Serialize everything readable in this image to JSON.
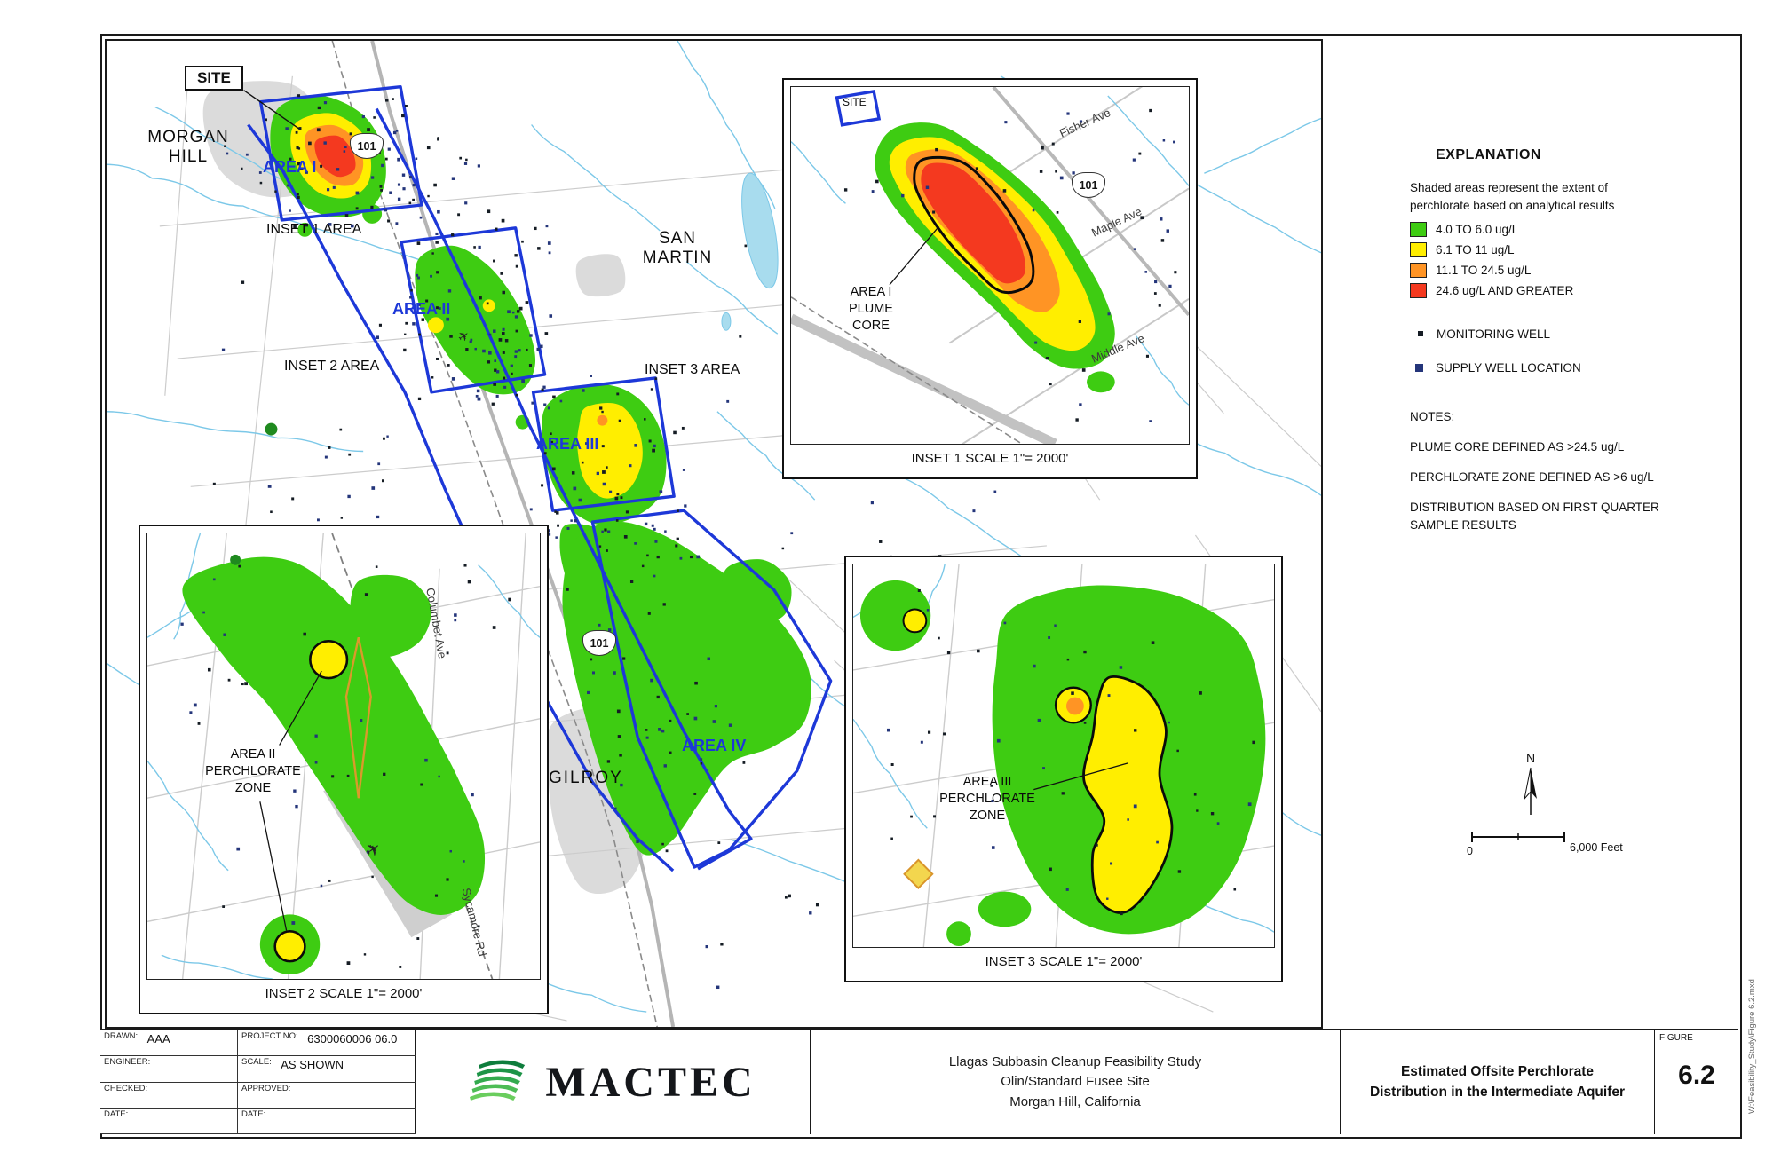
{
  "colors": {
    "green": "#3ecc12",
    "dark_green": "#1f8a1f",
    "yellow": "#ffee00",
    "orange": "#ff9424",
    "red": "#f4391f",
    "blue_outline": "#1d38d8",
    "stream": "#7cc8e8",
    "water": "#a8dcee",
    "well_dark": "#151c24",
    "well_navy": "#24357a"
  },
  "icons": {
    "airport": "✈"
  },
  "map": {
    "labels": {
      "site": "SITE",
      "morgan_hill_lines": [
        "MORGAN",
        "HILL"
      ],
      "area1": "AREA I",
      "inset1_area": "INSET 1 AREA",
      "area2": "AREA II",
      "inset2_area": "INSET 2 AREA",
      "san_martin_lines": [
        "SAN",
        "MARTIN"
      ],
      "inset3_area": "INSET 3 AREA",
      "area3": "AREA III",
      "area4": "AREA IV",
      "gilroy": "GILROY",
      "hwy101": "101"
    }
  },
  "inset1": {
    "site": "SITE",
    "plume_label_lines": [
      "AREA I",
      "PLUME",
      "CORE"
    ],
    "streets": [
      "Fisher Ave",
      "Maple Ave",
      "Middle Ave"
    ],
    "hwy101": "101",
    "caption": "INSET 1 SCALE 1\"= 2000'"
  },
  "inset2": {
    "zone_label_lines": [
      "AREA II",
      "PERCHLORATE",
      "ZONE"
    ],
    "streets": [
      "Columbet Ave",
      "Sycamore Rd"
    ],
    "caption": "INSET 2 SCALE 1\"= 2000'"
  },
  "inset3": {
    "zone_label_lines": [
      "AREA III",
      "PERCHLORATE",
      "ZONE"
    ],
    "caption": "INSET 3 SCALE 1\"= 2000'"
  },
  "legend": {
    "title": "EXPLANATION",
    "intro_lines": [
      "Shaded areas represent the extent of",
      "perchlorate based on analytical results"
    ],
    "classes": [
      {
        "color": "#3ecc12",
        "label": "4.0 TO 6.0 ug/L"
      },
      {
        "color": "#ffee00",
        "label": "6.1 TO 11 ug/L"
      },
      {
        "color": "#ff9424",
        "label": "11.1 TO 24.5 ug/L"
      },
      {
        "color": "#f4391f",
        "label": "24.6  ug/L AND GREATER"
      }
    ],
    "monitoring_well": "MONITORING WELL",
    "supply_well": "SUPPLY WELL  LOCATION",
    "notes_title": "NOTES:",
    "notes": [
      "PLUME CORE DEFINED AS >24.5 ug/L",
      "PERCHLORATE ZONE DEFINED AS >6 ug/L",
      "DISTRIBUTION BASED ON FIRST QUARTER SAMPLE RESULTS"
    ],
    "north": "N",
    "scale_zero": "0",
    "scale_label": "6,000 Feet"
  },
  "titleblock": {
    "drawn_label": "DRAWN:",
    "drawn_value": "AAA",
    "project_no_label": "PROJECT NO:",
    "project_no_value": "6300060006 06.0",
    "engineer_label": "ENGINEER:",
    "scale_label": "SCALE:",
    "scale_value": "AS SHOWN",
    "checked_label": "CHECKED:",
    "approved_label": "APPROVED:",
    "date_label": "DATE:",
    "date2_label": "DATE:",
    "logo_text": "MACTEC",
    "project_title_lines": [
      "Llagas Subbasin Cleanup Feasibility Study",
      "Olin/Standard Fusee Site",
      "Morgan Hill, California"
    ],
    "figure_title_lines": [
      "Estimated Offsite Perchlorate",
      "Distribution in the Intermediate Aquifer"
    ],
    "figure_label": "FIGURE",
    "figure_number": "6.2"
  },
  "side_note": "W:\\Feasibility_Study\\Figure 6.2.mxd"
}
